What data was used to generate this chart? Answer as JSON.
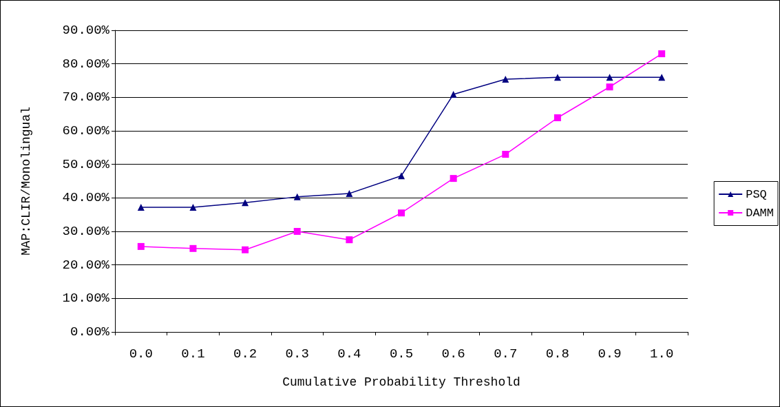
{
  "chart_data": {
    "type": "line",
    "xlabel": "Cumulative Probability Threshold",
    "ylabel": "MAP:CLIR/Monolingual",
    "categories": [
      "0.0",
      "0.1",
      "0.2",
      "0.3",
      "0.4",
      "0.5",
      "0.6",
      "0.7",
      "0.8",
      "0.9",
      "1.0"
    ],
    "series": [
      {
        "name": "PSQ",
        "color": "#000080",
        "marker": "triangle",
        "values": [
          37.2,
          37.2,
          38.6,
          40.3,
          41.3,
          46.6,
          70.9,
          75.4,
          76.0,
          76.0,
          76.0
        ]
      },
      {
        "name": "DAMM",
        "color": "#ff00ff",
        "marker": "square",
        "values": [
          25.5,
          24.9,
          24.5,
          30.0,
          27.5,
          35.5,
          45.8,
          53.0,
          63.9,
          73.1,
          83.0
        ]
      }
    ],
    "ylim": [
      0,
      90
    ],
    "yticks": [
      {
        "value": 0,
        "label": "0.00%"
      },
      {
        "value": 10,
        "label": "10.00%"
      },
      {
        "value": 20,
        "label": "20.00%"
      },
      {
        "value": 30,
        "label": "30.00%"
      },
      {
        "value": 40,
        "label": "40.00%"
      },
      {
        "value": 50,
        "label": "50.00%"
      },
      {
        "value": 60,
        "label": "60.00%"
      },
      {
        "value": 70,
        "label": "70.00%"
      },
      {
        "value": 80,
        "label": "80.00%"
      },
      {
        "value": 90,
        "label": "90.00%"
      }
    ],
    "grid": "y",
    "legend": "right",
    "line_style": "solid"
  }
}
